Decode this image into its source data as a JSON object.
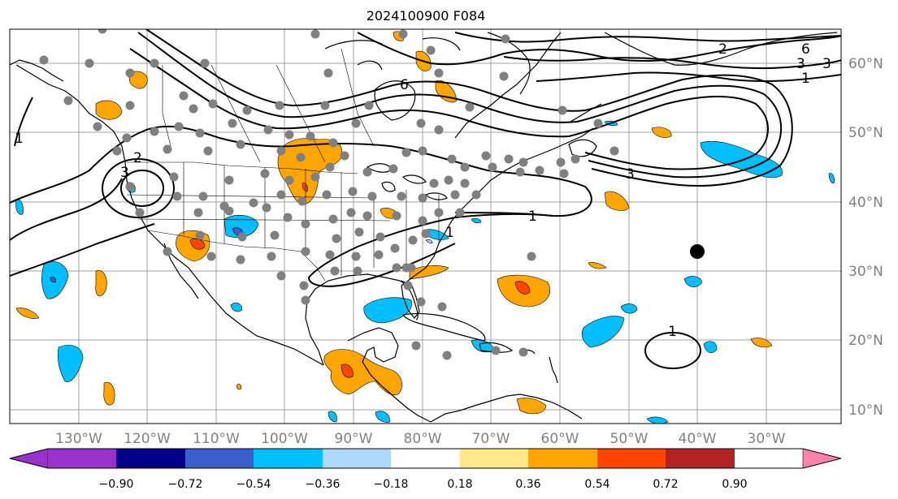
{
  "title": "2024100900 F084",
  "lat_labels": [
    "60°N",
    "50°N",
    "40°N",
    "30°N",
    "20°N",
    "10°N"
  ],
  "lon_labels": [
    "130°W",
    "120°W",
    "110°W",
    "100°W",
    "90°W",
    "80°W",
    "70°W",
    "60°W",
    "50°W",
    "40°W",
    "30°W"
  ],
  "colorbar": {
    "colors": [
      "#9932cc",
      "#00008b",
      "#3a5fcd",
      "#00bfff",
      "#add8f6",
      "#ffffff",
      "#ffe78a",
      "#ffa500",
      "#ff4500",
      "#b22222",
      "#ff82ab"
    ],
    "labels": [
      "−0.90",
      "−0.72",
      "−0.54",
      "−0.36",
      "−0.18",
      "0.18",
      "0.36",
      "0.54",
      "0.72",
      "0.90"
    ]
  },
  "contour_labels": [
    "6",
    "2",
    "3",
    "1",
    "3",
    "1",
    "2",
    "3",
    "1",
    "6",
    "3",
    "1",
    "1"
  ],
  "marker": {
    "color": "#000000"
  },
  "stations": {
    "color": "#808080"
  }
}
